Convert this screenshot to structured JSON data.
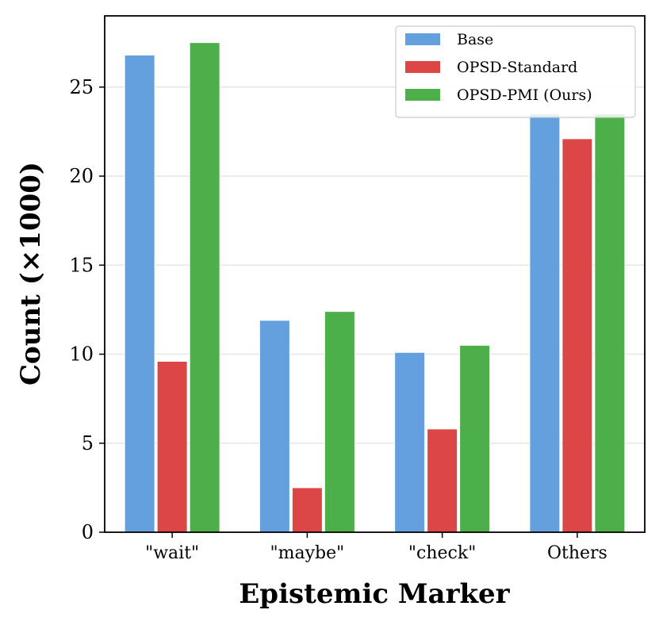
{
  "chart_data": {
    "type": "bar",
    "xlabel": "Epistemic Marker",
    "ylabel": "Count (×1000)",
    "categories": [
      "\"wait\"",
      "\"maybe\"",
      "\"check\"",
      "Others"
    ],
    "series": [
      {
        "name": "Base",
        "color": "#63a0dd",
        "values": [
          26.8,
          11.9,
          10.1,
          23.5
        ]
      },
      {
        "name": "OPSD-Standard",
        "color": "#dc4646",
        "values": [
          9.6,
          2.5,
          5.8,
          22.1
        ]
      },
      {
        "name": "OPSD-PMI (Ours)",
        "color": "#4caf4a",
        "values": [
          27.5,
          12.4,
          10.5,
          23.5
        ]
      }
    ],
    "ylim": [
      0,
      29
    ],
    "yticks": [
      0,
      5,
      10,
      15,
      20,
      25
    ],
    "grid": "y",
    "legend_position": "top-right"
  }
}
